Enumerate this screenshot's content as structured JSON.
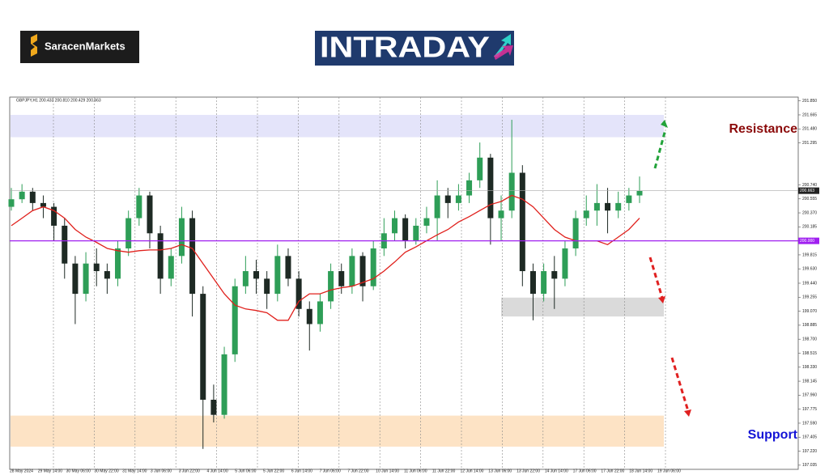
{
  "brand": {
    "name": "SaracenMarkets",
    "banner": "INTRADAY"
  },
  "chart_data": {
    "type": "candlestick",
    "title": "GBPJPY,H1  200.433 200.810 200.429 200.663",
    "xlabels": [
      "28 May 2024",
      "29 May 14:00",
      "30 May 06:00",
      "30 May 22:00",
      "31 May 14:00",
      "3 Jun 06:00",
      "3 Jun 22:00",
      "4 Jun 14:00",
      "5 Jun 06:00",
      "5 Jun 22:00",
      "6 Jun 14:00",
      "7 Jun 06:00",
      "7 Jun 22:00",
      "10 Jun 14:00",
      "11 Jun 06:00",
      "11 Jun 22:00",
      "12 Jun 14:00",
      "13 Jun 06:00",
      "13 Jun 22:00",
      "14 Jun 14:00",
      "17 Jun 06:00",
      "17 Jun 22:00",
      "18 Jun 14:00",
      "19 Jun 06:00"
    ],
    "candles": [
      [
        200.45,
        200.7,
        200.4,
        200.55
      ],
      [
        200.55,
        200.75,
        200.5,
        200.65
      ],
      [
        200.65,
        200.7,
        200.4,
        200.5
      ],
      [
        200.5,
        200.6,
        200.3,
        200.45
      ],
      [
        200.45,
        200.5,
        200.0,
        200.2
      ],
      [
        200.2,
        200.3,
        199.5,
        199.7
      ],
      [
        199.7,
        199.8,
        198.9,
        199.3
      ],
      [
        199.3,
        199.85,
        199.2,
        199.7
      ],
      [
        199.7,
        199.9,
        199.4,
        199.6
      ],
      [
        199.6,
        199.7,
        199.3,
        199.5
      ],
      [
        199.5,
        200.0,
        199.4,
        199.9
      ],
      [
        199.9,
        200.4,
        199.8,
        200.3
      ],
      [
        200.3,
        200.7,
        200.2,
        200.6
      ],
      [
        200.6,
        200.65,
        199.9,
        200.1
      ],
      [
        200.1,
        200.2,
        199.3,
        199.5
      ],
      [
        199.5,
        199.9,
        199.4,
        199.8
      ],
      [
        199.8,
        200.45,
        199.7,
        200.3
      ],
      [
        200.3,
        200.4,
        199.0,
        199.3
      ],
      [
        199.3,
        199.4,
        197.25,
        197.9
      ],
      [
        197.9,
        198.1,
        197.6,
        197.7
      ],
      [
        197.7,
        198.6,
        197.65,
        198.5
      ],
      [
        198.5,
        199.5,
        198.4,
        199.4
      ],
      [
        199.4,
        199.8,
        199.3,
        199.6
      ],
      [
        199.6,
        199.75,
        199.3,
        199.5
      ],
      [
        199.5,
        199.6,
        199.1,
        199.3
      ],
      [
        199.3,
        199.95,
        199.2,
        199.8
      ],
      [
        199.8,
        199.9,
        199.4,
        199.5
      ],
      [
        199.5,
        199.6,
        199.0,
        199.1
      ],
      [
        199.1,
        199.2,
        198.55,
        198.9
      ],
      [
        198.9,
        199.3,
        198.8,
        199.2
      ],
      [
        199.2,
        199.7,
        199.1,
        199.6
      ],
      [
        199.6,
        199.7,
        199.3,
        199.4
      ],
      [
        199.4,
        199.9,
        199.3,
        199.8
      ],
      [
        199.8,
        199.85,
        199.2,
        199.4
      ],
      [
        199.4,
        200.0,
        199.35,
        199.9
      ],
      [
        199.9,
        200.3,
        199.8,
        200.1
      ],
      [
        200.1,
        200.4,
        200.0,
        200.3
      ],
      [
        200.3,
        200.35,
        199.9,
        200.0
      ],
      [
        200.0,
        200.3,
        199.95,
        200.2
      ],
      [
        200.2,
        200.45,
        200.1,
        200.3
      ],
      [
        200.3,
        200.8,
        200.0,
        200.6
      ],
      [
        200.6,
        200.7,
        200.3,
        200.5
      ],
      [
        200.5,
        200.75,
        200.4,
        200.6
      ],
      [
        200.6,
        200.9,
        200.5,
        200.8
      ],
      [
        200.8,
        201.3,
        200.7,
        201.1
      ],
      [
        201.1,
        201.15,
        199.95,
        200.3
      ],
      [
        200.3,
        200.6,
        200.0,
        200.4
      ],
      [
        200.4,
        201.6,
        200.3,
        200.9
      ],
      [
        200.9,
        201.0,
        199.4,
        199.6
      ],
      [
        199.6,
        199.7,
        198.95,
        199.3
      ],
      [
        199.3,
        199.7,
        199.2,
        199.6
      ],
      [
        199.6,
        199.8,
        199.1,
        199.5
      ],
      [
        199.5,
        200.0,
        199.4,
        199.9
      ],
      [
        199.9,
        200.4,
        199.8,
        200.3
      ],
      [
        200.3,
        200.6,
        200.2,
        200.4
      ],
      [
        200.4,
        200.75,
        200.2,
        200.5
      ],
      [
        200.5,
        200.7,
        200.1,
        200.4
      ],
      [
        200.4,
        200.65,
        200.3,
        200.5
      ],
      [
        200.5,
        200.7,
        200.4,
        200.6
      ],
      [
        200.6,
        200.85,
        200.5,
        200.66
      ]
    ],
    "up_color": "#2e9e57",
    "down_color": "#1e2a24",
    "moving_average": {
      "color": "#e0201c",
      "values": [
        200.2,
        200.3,
        200.4,
        200.45,
        200.4,
        200.3,
        200.15,
        200.05,
        199.98,
        199.9,
        199.87,
        199.85,
        199.87,
        199.88,
        199.88,
        199.9,
        199.95,
        199.9,
        199.7,
        199.5,
        199.3,
        199.15,
        199.1,
        199.08,
        199.05,
        198.95,
        198.95,
        199.2,
        199.3,
        199.3,
        199.35,
        199.38,
        199.4,
        199.45,
        199.5,
        199.6,
        199.72,
        199.85,
        199.92,
        200.0,
        200.08,
        200.15,
        200.25,
        200.32,
        200.4,
        200.48,
        200.52,
        200.6,
        200.55,
        200.45,
        200.3,
        200.15,
        200.05,
        200.0,
        200.0,
        200.0,
        199.95,
        200.05,
        200.15,
        200.3
      ]
    },
    "ylim": [
      196.98,
      201.9
    ],
    "yticks": [
      {
        "value": 201.85,
        "label": "201.850"
      },
      {
        "value": 201.665,
        "label": "201.665"
      },
      {
        "value": 201.48,
        "label": "201.480"
      },
      {
        "value": 201.295,
        "label": "201.295"
      },
      {
        "value": 200.74,
        "label": "200.740"
      },
      {
        "value": 200.555,
        "label": "200.555"
      },
      {
        "value": 200.37,
        "label": "200.370"
      },
      {
        "value": 200.185,
        "label": "200.185"
      },
      {
        "value": 199.815,
        "label": "199.815"
      },
      {
        "value": 199.63,
        "label": "199.630"
      },
      {
        "value": 199.44,
        "label": "199.440"
      },
      {
        "value": 199.255,
        "label": "199.255"
      },
      {
        "value": 199.07,
        "label": "199.070"
      },
      {
        "value": 198.885,
        "label": "198.885"
      },
      {
        "value": 198.7,
        "label": "198.700"
      },
      {
        "value": 198.515,
        "label": "198.515"
      },
      {
        "value": 198.33,
        "label": "198.330"
      },
      {
        "value": 198.145,
        "label": "198.145"
      },
      {
        "value": 197.96,
        "label": "197.960"
      },
      {
        "value": 197.775,
        "label": "197.775"
      },
      {
        "value": 197.59,
        "label": "197.590"
      },
      {
        "value": 197.405,
        "label": "197.405"
      },
      {
        "value": 197.22,
        "label": "197.220"
      },
      {
        "value": 197.035,
        "label": "197.035"
      }
    ],
    "level_line": {
      "value": 200.0,
      "label": "200.000",
      "color": "#a020f0"
    },
    "current_price": {
      "value": 200.663,
      "label": "200.663"
    },
    "zones": [
      {
        "range": [
          201.37,
          201.665
        ],
        "color": "#e4e4fa"
      },
      {
        "range": [
          199.0,
          199.25
        ],
        "color": "#dadada"
      },
      {
        "range": [
          197.28,
          197.69
        ],
        "color": "#fde3c5"
      }
    ],
    "annotations": [
      {
        "text": "Resistance",
        "color": "#8b0a0a"
      },
      {
        "text": "Support",
        "color": "#1414d6"
      }
    ]
  }
}
